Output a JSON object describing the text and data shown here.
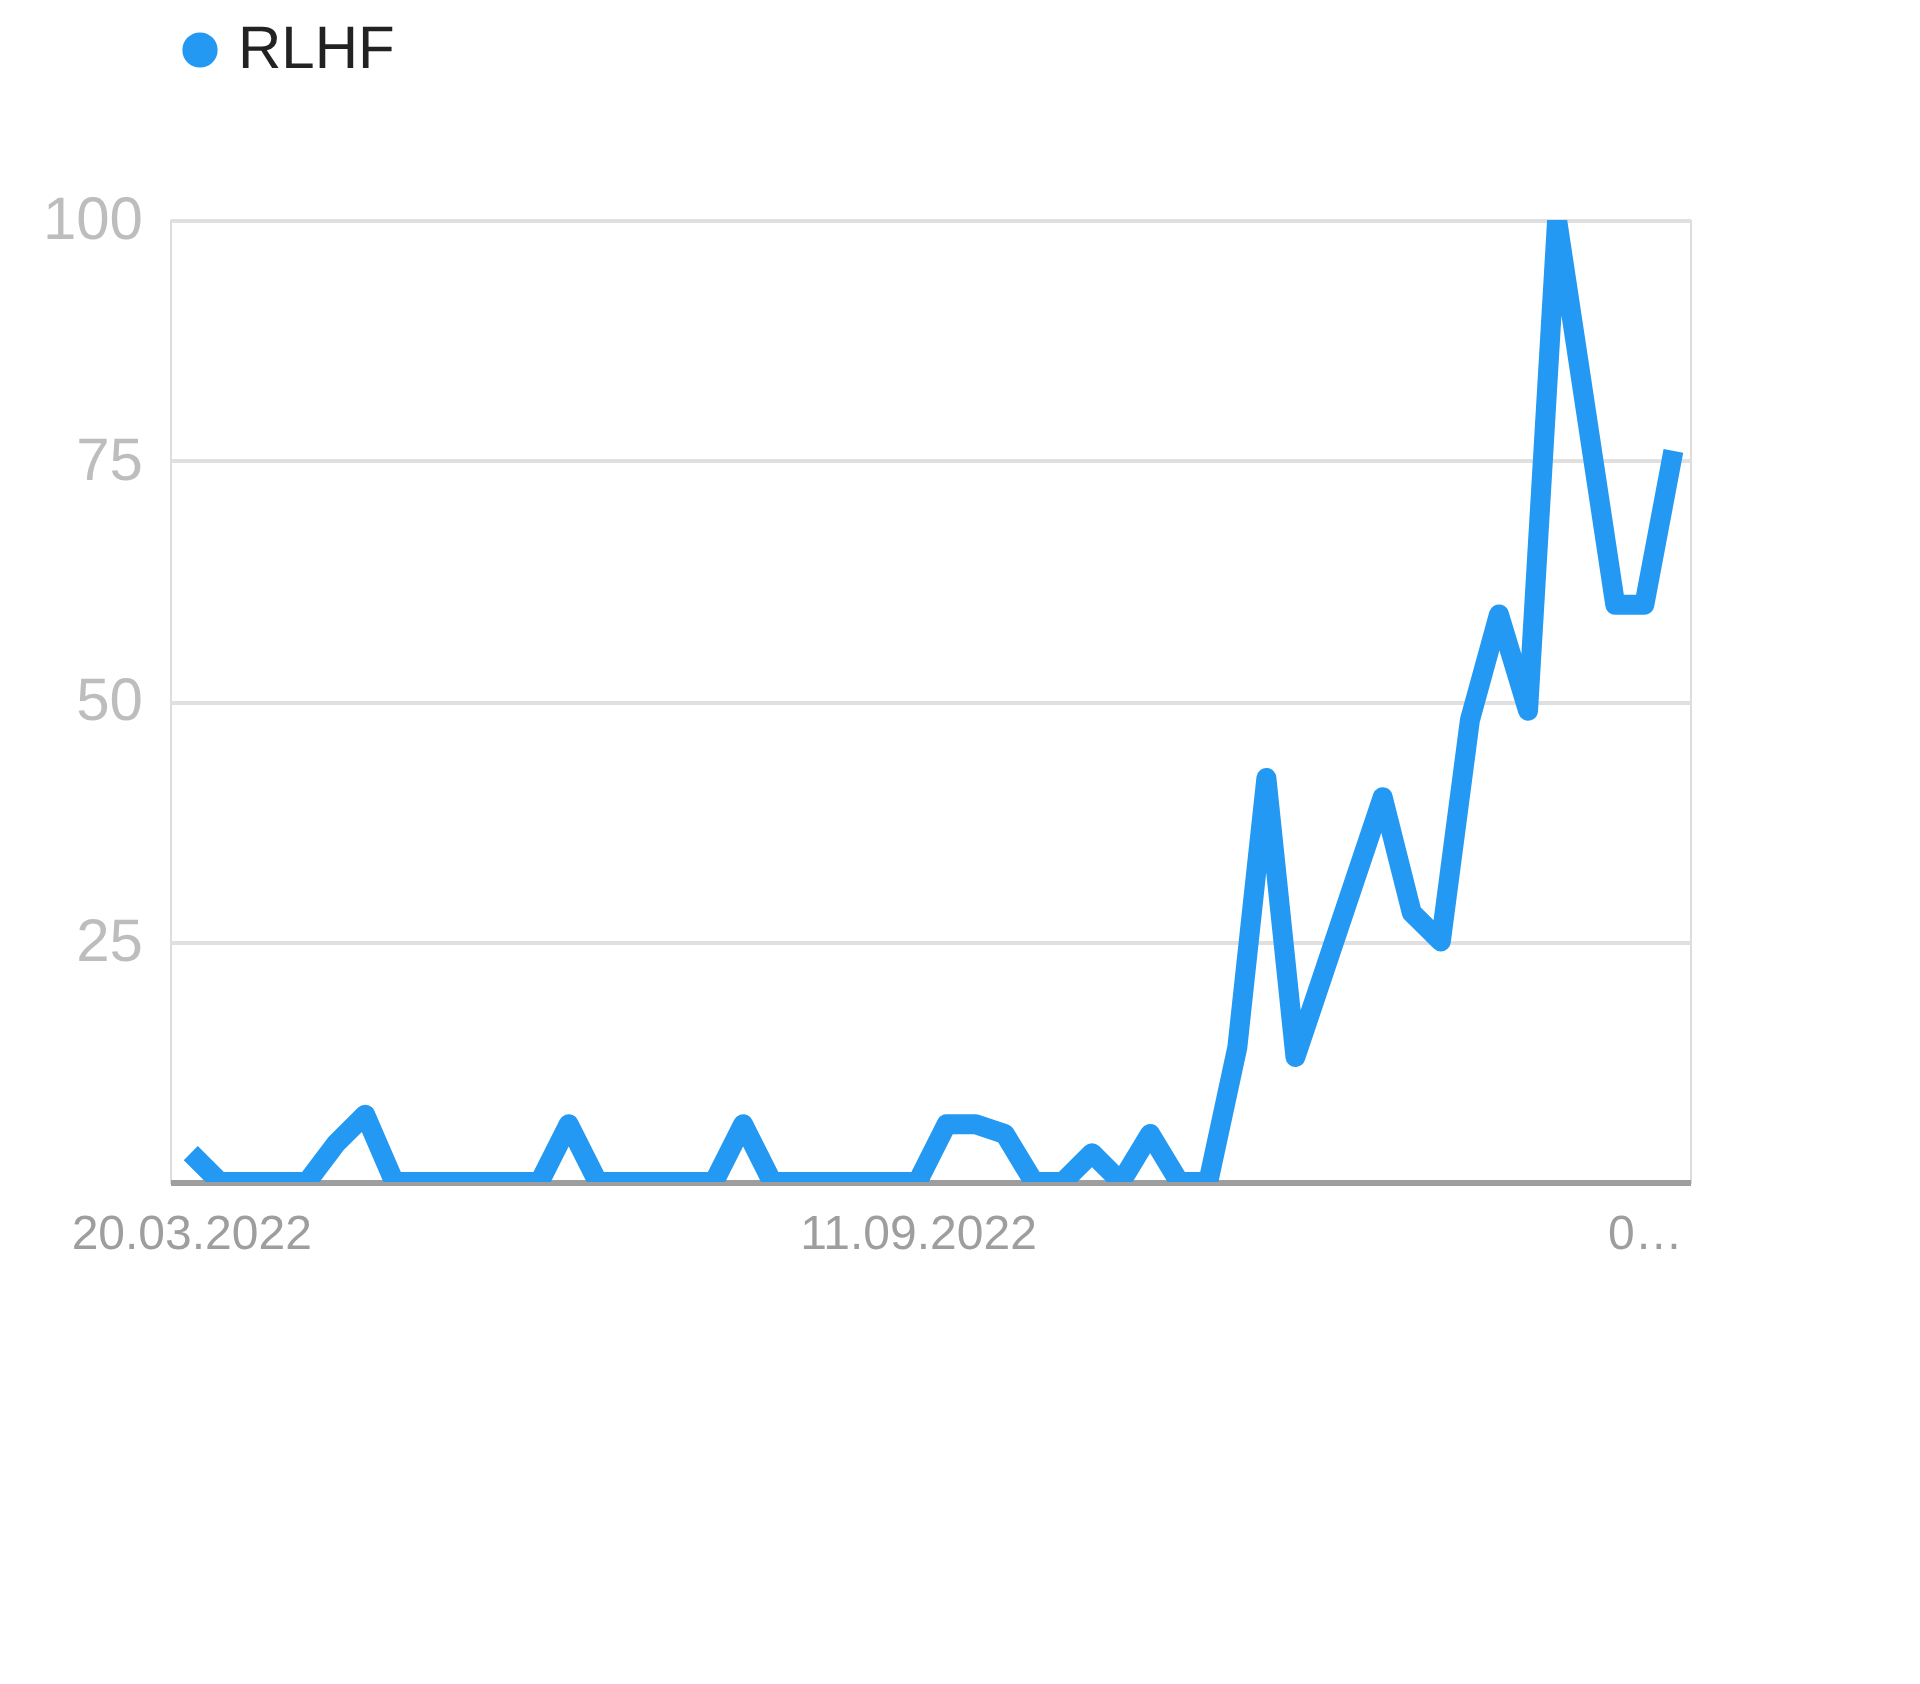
{
  "chart_data": {
    "type": "line",
    "x": [
      "2022-03-20",
      "2022-03-27",
      "2022-04-03",
      "2022-04-10",
      "2022-04-17",
      "2022-04-24",
      "2022-05-01",
      "2022-05-08",
      "2022-05-15",
      "2022-05-22",
      "2022-05-29",
      "2022-06-05",
      "2022-06-12",
      "2022-06-19",
      "2022-06-26",
      "2022-07-03",
      "2022-07-10",
      "2022-07-17",
      "2022-07-24",
      "2022-07-31",
      "2022-08-07",
      "2022-08-14",
      "2022-08-21",
      "2022-08-28",
      "2022-09-04",
      "2022-09-11",
      "2022-09-18",
      "2022-09-25",
      "2022-10-02",
      "2022-10-09",
      "2022-10-16",
      "2022-10-23",
      "2022-10-30",
      "2022-11-06",
      "2022-11-13",
      "2022-11-20",
      "2022-11-27",
      "2022-12-04",
      "2022-12-11",
      "2022-12-18",
      "2022-12-25",
      "2023-01-01",
      "2023-01-08",
      "2023-01-15",
      "2023-01-22",
      "2023-01-29",
      "2023-02-05",
      "2023-02-12",
      "2023-02-19",
      "2023-02-26",
      "2023-03-05",
      "2023-03-12"
    ],
    "series": [
      {
        "name": "RLHF",
        "color": "#2399f3",
        "values": [
          3,
          0,
          0,
          0,
          0,
          4,
          7,
          0,
          0,
          0,
          0,
          0,
          0,
          6,
          0,
          0,
          0,
          0,
          0,
          6,
          0,
          0,
          0,
          0,
          0,
          0,
          6,
          6,
          5,
          0,
          0,
          3,
          0,
          5,
          0,
          0,
          14,
          42,
          13,
          22,
          31,
          40,
          28,
          25,
          48,
          59,
          49,
          100,
          80,
          60,
          60,
          76
        ]
      }
    ],
    "xlim": [
      "2022-03-15",
      "2023-03-16"
    ],
    "xticks": [
      {
        "value": "2022-03-20",
        "label": "20.03.2022"
      },
      {
        "value": "2022-09-11",
        "label": "11.09.2022"
      },
      {
        "value": "2023-03-05",
        "label": "0…"
      }
    ],
    "ylim": [
      0,
      100
    ],
    "yticks": [
      25,
      50,
      75,
      100
    ],
    "grid": "y",
    "legend": "top left",
    "marker": "none",
    "line_style": "solid"
  }
}
